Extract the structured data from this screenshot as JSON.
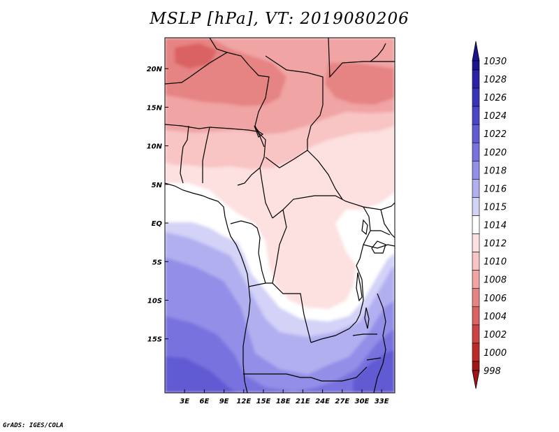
{
  "title": "MSLP [hPa], VT: 2019080206",
  "credit": "GrADS: IGES/COLA",
  "map": {
    "lon_range": [
      0,
      35
    ],
    "lat_range": [
      -22,
      24
    ],
    "lon_ticks": [
      {
        "value": 3,
        "label": "3E"
      },
      {
        "value": 6,
        "label": "6E"
      },
      {
        "value": 9,
        "label": "9E"
      },
      {
        "value": 12,
        "label": "12E"
      },
      {
        "value": 15,
        "label": "15E"
      },
      {
        "value": 18,
        "label": "18E"
      },
      {
        "value": 21,
        "label": "21E"
      },
      {
        "value": 24,
        "label": "24E"
      },
      {
        "value": 27,
        "label": "27E"
      },
      {
        "value": 30,
        "label": "30E"
      },
      {
        "value": 33,
        "label": "33E"
      }
    ],
    "lat_ticks": [
      {
        "value": 20,
        "label": "20N"
      },
      {
        "value": 15,
        "label": "15N"
      },
      {
        "value": 10,
        "label": "10N"
      },
      {
        "value": 5,
        "label": "5N"
      },
      {
        "value": 0,
        "label": "EQ"
      },
      {
        "value": -5,
        "label": "5S"
      },
      {
        "value": -10,
        "label": "10S"
      },
      {
        "value": -15,
        "label": "15S"
      }
    ]
  },
  "colorbar": {
    "levels": [
      {
        "label": "1030",
        "color": "#1b148c"
      },
      {
        "label": "1028",
        "color": "#2a22a5"
      },
      {
        "label": "1026",
        "color": "#3a33b8"
      },
      {
        "label": "1024",
        "color": "#4c45c8"
      },
      {
        "label": "1022",
        "color": "#605ad3"
      },
      {
        "label": "1020",
        "color": "#7872de"
      },
      {
        "label": "1018",
        "color": "#938ee7"
      },
      {
        "label": "1016",
        "color": "#b2aff0"
      },
      {
        "label": "1015",
        "color": "#d3d2f7"
      },
      {
        "label": "1014",
        "color": "#ffffff"
      },
      {
        "label": "1012",
        "color": "#fde0e0"
      },
      {
        "label": "1010",
        "color": "#f8c4c4"
      },
      {
        "label": "1008",
        "color": "#f0a4a4"
      },
      {
        "label": "1006",
        "color": "#e68383"
      },
      {
        "label": "1004",
        "color": "#da6262"
      },
      {
        "label": "1002",
        "color": "#cc4343"
      },
      {
        "label": "1000",
        "color": "#bc2a2a"
      },
      {
        "label": "998",
        "color": "#a11616"
      }
    ],
    "top_arrow_color": "#1b148c",
    "bottom_arrow_color": "#a11616"
  }
}
